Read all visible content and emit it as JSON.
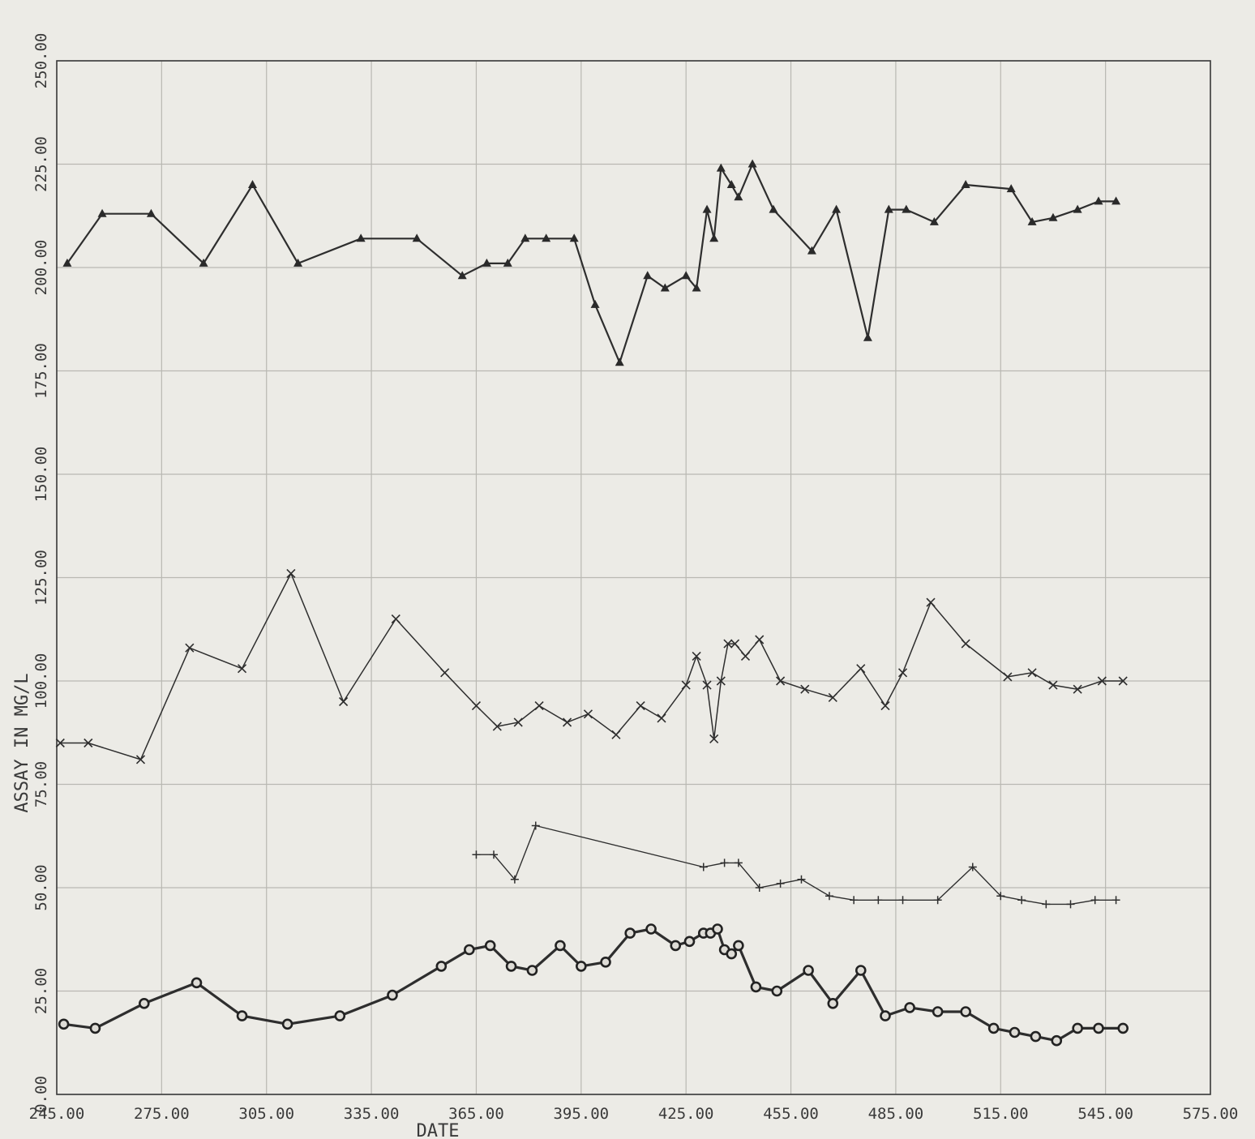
{
  "chart_data": {
    "type": "line",
    "xlabel": "DATE",
    "ylabel": "ASSAY IN MG/L",
    "xlim": [
      245,
      575
    ],
    "ylim": [
      0,
      250
    ],
    "xticks": [
      "245.00",
      "275.00",
      "305.00",
      "335.00",
      "365.00",
      "395.00",
      "425.00",
      "455.00",
      "485.00",
      "515.00",
      "545.00",
      "575.00"
    ],
    "yticks": [
      "0.00",
      "25.00",
      "50.00",
      "75.00",
      "100.00",
      "125.00",
      "150.00",
      "175.00",
      "200.00",
      "225.00",
      "250.00"
    ],
    "grid": true,
    "series": [
      {
        "marker": "triangle",
        "x": [
          248,
          258,
          272,
          287,
          301,
          314,
          332,
          348,
          361,
          368,
          374,
          379,
          385,
          393,
          399,
          406,
          414,
          419,
          425,
          428,
          431,
          433,
          435,
          438,
          440,
          444,
          450,
          461,
          468,
          477,
          483,
          488,
          496,
          505,
          518,
          524,
          530,
          537,
          543,
          548
        ],
        "y": [
          201,
          213,
          213,
          201,
          220,
          201,
          207,
          207,
          198,
          201,
          201,
          207,
          207,
          207,
          191,
          177,
          198,
          195,
          198,
          195,
          214,
          207,
          224,
          220,
          217,
          225,
          214,
          204,
          214,
          183,
          214,
          214,
          211,
          220,
          219,
          211,
          212,
          214,
          216,
          216
        ]
      },
      {
        "marker": "x",
        "x": [
          246,
          254,
          269,
          283,
          298,
          312,
          327,
          342,
          356,
          365,
          371,
          377,
          383,
          391,
          397,
          405,
          412,
          418,
          425,
          428,
          431,
          433,
          435,
          437,
          439,
          442,
          446,
          452,
          459,
          467,
          475,
          482,
          487,
          495,
          505,
          517,
          524,
          530,
          537,
          544,
          550
        ],
        "y": [
          85,
          85,
          81,
          108,
          103,
          126,
          95,
          115,
          102,
          94,
          89,
          90,
          94,
          90,
          92,
          87,
          94,
          91,
          99,
          106,
          99,
          86,
          100,
          109,
          109,
          106,
          110,
          100,
          98,
          96,
          103,
          94,
          102,
          119,
          109,
          101,
          102,
          99,
          98,
          100,
          100
        ]
      },
      {
        "marker": "plus",
        "x": [
          365,
          370,
          376,
          382,
          430,
          436,
          440,
          446,
          452,
          458,
          466,
          473,
          480,
          487,
          497,
          507,
          515,
          521,
          528,
          535,
          542,
          548
        ],
        "y": [
          58,
          58,
          52,
          65,
          55,
          56,
          56,
          50,
          51,
          52,
          48,
          47,
          47,
          47,
          47,
          55,
          48,
          47,
          46,
          46,
          47,
          47
        ]
      },
      {
        "marker": "circle",
        "x": [
          247,
          256,
          270,
          285,
          298,
          311,
          326,
          341,
          355,
          363,
          369,
          375,
          381,
          389,
          395,
          402,
          409,
          415,
          422,
          426,
          430,
          432,
          434,
          436,
          438,
          440,
          445,
          451,
          460,
          467,
          475,
          482,
          489,
          497,
          505,
          513,
          519,
          525,
          531,
          537,
          543,
          550
        ],
        "y": [
          17,
          16,
          22,
          27,
          19,
          17,
          19,
          24,
          31,
          35,
          36,
          31,
          30,
          36,
          31,
          32,
          39,
          40,
          36,
          37,
          39,
          39,
          40,
          35,
          34,
          36,
          26,
          25,
          30,
          22,
          30,
          19,
          21,
          20,
          20,
          16,
          15,
          14,
          13,
          16,
          16,
          16
        ]
      }
    ]
  }
}
